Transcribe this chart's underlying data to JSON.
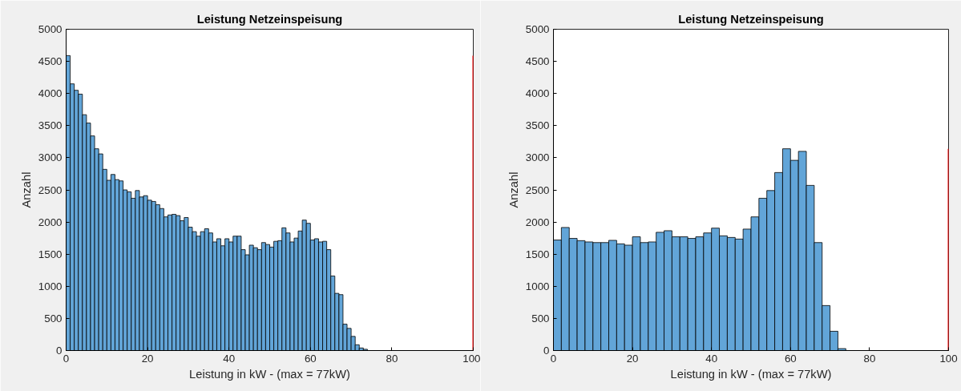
{
  "chart_data": [
    {
      "type": "histogram",
      "title": "Leistung Netzeinspeisung",
      "xlabel": "Leistung in kW - (max = 77kW)",
      "ylabel": "Anzahl",
      "color": "#62a5d8",
      "bins": [
        0,
        1,
        2,
        3,
        4,
        5,
        6,
        7,
        8,
        9,
        10,
        11,
        12,
        13,
        14,
        15,
        16,
        17,
        18,
        19,
        20,
        21,
        22,
        23,
        24,
        25,
        26,
        27,
        28,
        29,
        30,
        31,
        32,
        33,
        34,
        35,
        36,
        37,
        38,
        39,
        40,
        41,
        42,
        43,
        44,
        45,
        46,
        47,
        48,
        49,
        50,
        51,
        52,
        53,
        54,
        55,
        56,
        57,
        58,
        59,
        60,
        61,
        62,
        63,
        64,
        65,
        66,
        67,
        68,
        69,
        70,
        71,
        72,
        73,
        74,
        75,
        76,
        77
      ],
      "values": [
        4590,
        4150,
        4050,
        3990,
        3670,
        3540,
        3340,
        3140,
        3060,
        2820,
        2650,
        2740,
        2660,
        2640,
        2500,
        2470,
        2370,
        2490,
        2390,
        2410,
        2340,
        2320,
        2270,
        2210,
        2080,
        2110,
        2120,
        2100,
        2020,
        2070,
        1920,
        1850,
        1780,
        1850,
        1895,
        1830,
        1690,
        1740,
        1630,
        1740,
        1690,
        1780,
        1780,
        1570,
        1490,
        1640,
        1600,
        1570,
        1680,
        1650,
        1610,
        1700,
        1710,
        1910,
        1830,
        1690,
        1750,
        1860,
        2030,
        1980,
        1720,
        1740,
        1690,
        1700,
        1570,
        1160,
        890,
        870,
        410,
        345,
        220,
        90,
        40,
        20,
        null,
        null,
        null
      ],
      "xlim": [
        0,
        100
      ],
      "xticks": [
        0,
        20,
        40,
        60,
        80,
        100
      ],
      "ylim": [
        0,
        5000
      ],
      "yticks": [
        0,
        500,
        1000,
        1500,
        2000,
        2500,
        3000,
        3500,
        4000,
        4500,
        5000
      ],
      "grid": false,
      "ref_lines": [
        {
          "axis": "x",
          "value": 100,
          "color": "#ff0000"
        }
      ]
    },
    {
      "type": "histogram",
      "title": "Leistung Netzeinspeisung",
      "xlabel": "Leistung in kW - (max = 77kW)",
      "ylabel": "Anzahl",
      "color": "#62a5d8",
      "bins": [
        0,
        2,
        4,
        6,
        8,
        10,
        12,
        14,
        16,
        18,
        20,
        22,
        24,
        26,
        28,
        30,
        32,
        34,
        36,
        38,
        40,
        42,
        44,
        46,
        48,
        50,
        52,
        54,
        56,
        58,
        60,
        62,
        64,
        66,
        68,
        70,
        72,
        74,
        76,
        78
      ],
      "values": [
        1720,
        1915,
        1745,
        1710,
        1690,
        1680,
        1680,
        1715,
        1660,
        1640,
        1770,
        1680,
        1690,
        1840,
        1865,
        1770,
        1770,
        1745,
        1770,
        1830,
        1905,
        1785,
        1760,
        1735,
        1890,
        2080,
        2370,
        2490,
        2770,
        3140,
        2960,
        3100,
        2570,
        1680,
        700,
        300,
        30,
        null,
        null
      ],
      "xlim": [
        0,
        100
      ],
      "xticks": [
        0,
        20,
        40,
        60,
        80,
        100
      ],
      "ylim": [
        0,
        5000
      ],
      "yticks": [
        0,
        500,
        1000,
        1500,
        2000,
        2500,
        3000,
        3500,
        4000,
        4500,
        5000
      ],
      "grid": false,
      "ref_lines": [
        {
          "axis": "x",
          "value": 100,
          "color": "#ff0000"
        }
      ]
    }
  ]
}
